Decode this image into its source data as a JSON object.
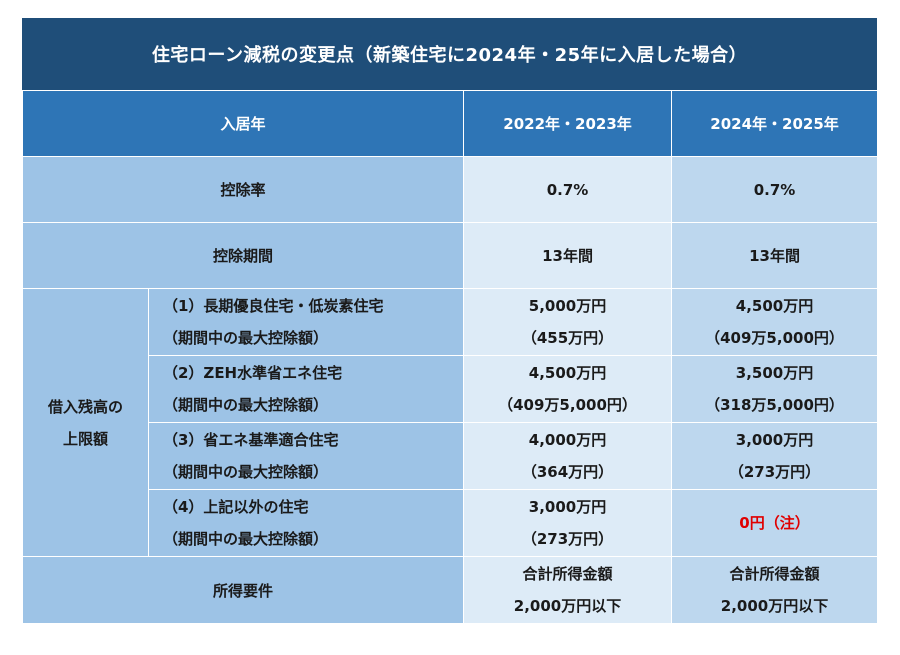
{
  "title": "住宅ローン減税の変更点（新築住宅に2024年・25年に入居した場合）",
  "header": {
    "label": "入居年",
    "col1": "2022年・2023年",
    "col2": "2024年・2025年"
  },
  "rows": {
    "rate": {
      "label": "控除率",
      "col1": "0.7%",
      "col2": "0.7%"
    },
    "period": {
      "label": "控除期間",
      "col1": "13年間",
      "col2": "13年間"
    },
    "limit_label_1": "借入残高の",
    "limit_label_2": "上限額",
    "sub": [
      {
        "line1": "（1）長期優良住宅・低炭素住宅",
        "line2": "（期間中の最大控除額）",
        "c1a": "5,000万円",
        "c1b": "（455万円）",
        "c2a": "4,500万円",
        "c2b": "（409万5,000円）"
      },
      {
        "line1": "（2）ZEH水準省エネ住宅",
        "line2": "（期間中の最大控除額）",
        "c1a": "4,500万円",
        "c1b": "（409万5,000円）",
        "c2a": "3,500万円",
        "c2b": "（318万5,000円）"
      },
      {
        "line1": "（3）省エネ基準適合住宅",
        "line2": "（期間中の最大控除額）",
        "c1a": "4,000万円",
        "c1b": "（364万円）",
        "c2a": "3,000万円",
        "c2b": "（273万円）"
      },
      {
        "line1": "（4）上記以外の住宅",
        "line2": "（期間中の最大控除額）",
        "c1a": "3,000万円",
        "c1b": "（273万円）",
        "c2a": "0円（注）",
        "c2b": ""
      }
    ],
    "income": {
      "label": "所得要件",
      "c1a": "合計所得金額",
      "c1b": "2,000万円以下",
      "c2a": "合計所得金額",
      "c2b": "2,000万円以下"
    }
  },
  "colors": {
    "title_bg": "#1f4e79",
    "header_bg": "#2e75b6",
    "label_bg": "#9dc3e6",
    "col1_bg": "#ddebf7",
    "col2_bg": "#bdd7ee",
    "alert": "#e00000"
  }
}
